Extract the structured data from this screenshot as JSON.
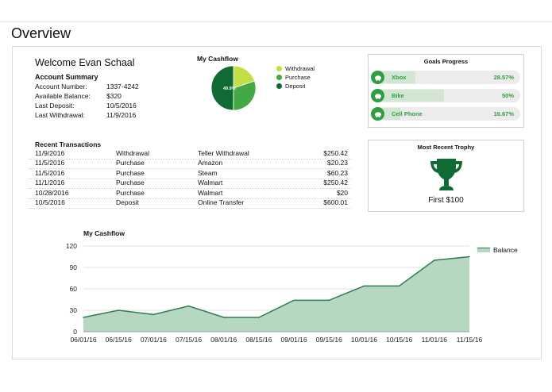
{
  "page": {
    "title": "Overview"
  },
  "account": {
    "welcome": "Welcome Evan Schaal",
    "summary_title": "Account Summary",
    "rows": [
      {
        "label": "Account Number:",
        "value": "1337-4242"
      },
      {
        "label": "Available Balance:",
        "value": "$320"
      },
      {
        "label": "Last Deposit:",
        "value": "10/5/2016"
      },
      {
        "label": "Last Withdrawal:",
        "value": "11/9/2016"
      }
    ]
  },
  "pie": {
    "title": "My Cashflow",
    "center_label": "49.9%",
    "slices": [
      {
        "name": "Withdrawal",
        "value": 19.9,
        "color": "#c3df46"
      },
      {
        "name": "Purchase",
        "value": 30.2,
        "color": "#43a944"
      },
      {
        "name": "Deposit",
        "value": 49.9,
        "color": "#0f6b33"
      }
    ]
  },
  "transactions": {
    "title": "Recent Transactions",
    "rows": [
      {
        "date": "11/9/2016",
        "type": "Withdrawal",
        "desc": "Teller Withdrawal",
        "amount": "$250.42"
      },
      {
        "date": "11/5/2016",
        "type": "Purchase",
        "desc": "Amazon",
        "amount": "$20.23"
      },
      {
        "date": "11/5/2016",
        "type": "Purchase",
        "desc": "Steam",
        "amount": "$60.23"
      },
      {
        "date": "11/1/2016",
        "type": "Purchase",
        "desc": "Walmart",
        "amount": "$250.42"
      },
      {
        "date": "10/28/2016",
        "type": "Purchase",
        "desc": "Walmart",
        "amount": "$20"
      },
      {
        "date": "10/5/2016",
        "type": "Deposit",
        "desc": "Online Transfer",
        "amount": "$600.01"
      }
    ]
  },
  "goals": {
    "title": "Goals Progress",
    "items": [
      {
        "name": "Xbox",
        "pct": "28.57%",
        "fraction": 0.2857,
        "icon": "piggy-bank-icon"
      },
      {
        "name": "Bike",
        "pct": "50%",
        "fraction": 0.5,
        "icon": "piggy-bank-icon"
      },
      {
        "name": "Cell Phone",
        "pct": "16.67%",
        "fraction": 0.1667,
        "icon": "piggy-bank-icon"
      }
    ]
  },
  "trophy": {
    "title": "Most Recent Trophy",
    "name": "First $100",
    "icon": "trophy-icon",
    "color": "#0f6b33"
  },
  "chart_data": {
    "type": "area",
    "title": "My Cashflow",
    "xlabel": "",
    "ylabel": "",
    "x": [
      "06/01/16",
      "06/15/16",
      "07/01/16",
      "07/15/16",
      "08/01/16",
      "08/15/16",
      "09/01/16",
      "09/15/16",
      "10/01/16",
      "10/15/16",
      "11/01/16",
      "11/15/16"
    ],
    "series": [
      {
        "name": "Balance",
        "values": [
          20,
          30,
          24,
          36,
          20,
          20,
          44,
          44,
          64,
          64,
          100,
          105
        ],
        "color": "#2e7d4f",
        "fill": "#b7d8c0"
      }
    ],
    "ylim": [
      0,
      120
    ],
    "yticks": [
      0,
      30,
      60,
      90,
      120
    ],
    "grid": true,
    "legend": "right"
  }
}
